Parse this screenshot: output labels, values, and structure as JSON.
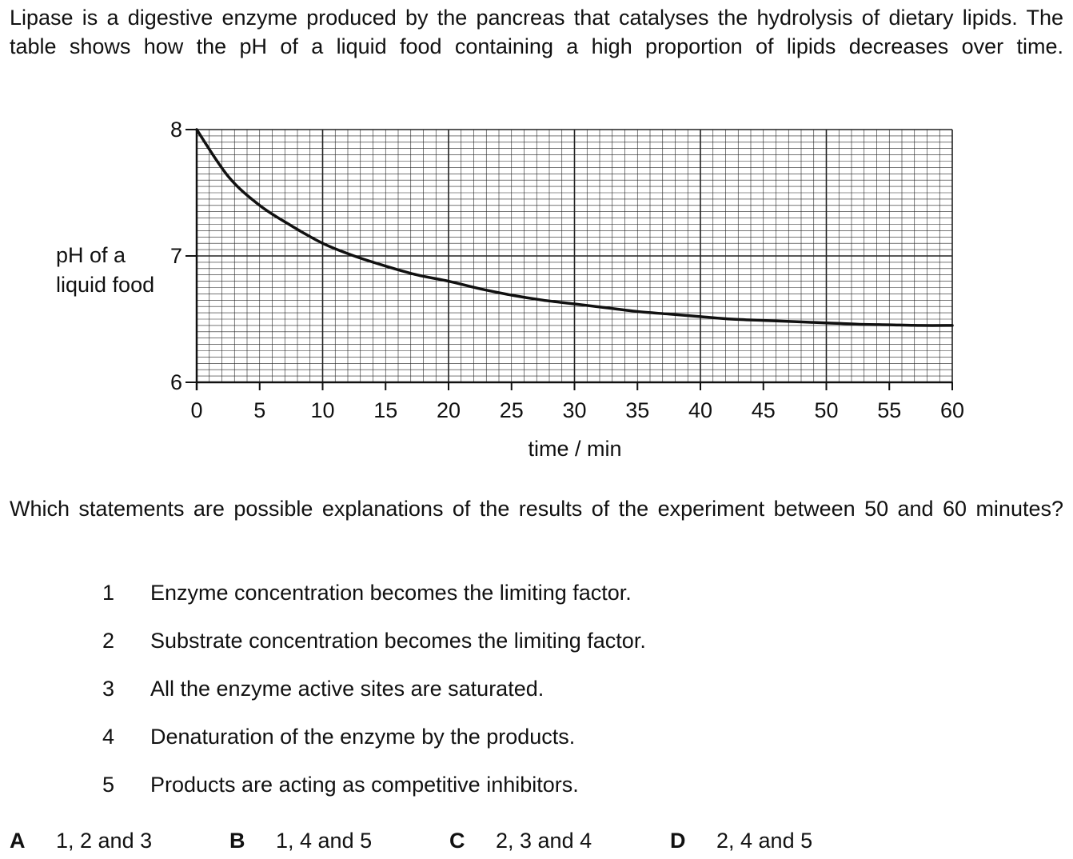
{
  "intro": "Lipase is a digestive enzyme produced by the pancreas that catalyses the hydrolysis of dietary lipids. The table shows how the pH of a liquid food containing a high proportion of lipids decreases over time.",
  "chart_data": {
    "type": "line",
    "title": "",
    "ylabel_line1": "pH of a",
    "ylabel_line2": "liquid food",
    "xlabel": "time / min",
    "xlim": [
      0,
      60
    ],
    "ylim": [
      6,
      8
    ],
    "xticks": [
      "0",
      "5",
      "10",
      "15",
      "20",
      "25",
      "30",
      "35",
      "40",
      "45",
      "50",
      "55",
      "60"
    ],
    "yticks": [
      "6",
      "7",
      "8"
    ],
    "grid": true,
    "series": [
      {
        "x": [
          0,
          2.5,
          5,
          7.5,
          10,
          12.5,
          15,
          17.5,
          20,
          22.5,
          25,
          27.5,
          30,
          32.5,
          35,
          37.5,
          40,
          42.5,
          45,
          47.5,
          50,
          52.5,
          55,
          57.5,
          60
        ],
        "y": [
          8.0,
          7.63,
          7.4,
          7.24,
          7.1,
          7.0,
          6.92,
          6.85,
          6.8,
          6.74,
          6.69,
          6.65,
          6.62,
          6.59,
          6.56,
          6.54,
          6.52,
          6.5,
          6.49,
          6.48,
          6.47,
          6.46,
          6.455,
          6.45,
          6.45
        ]
      }
    ]
  },
  "question": "Which statements are possible explanations of the results of the experiment between 50 and 60 minutes?",
  "statements": [
    {
      "num": "1",
      "text": "Enzyme concentration becomes the limiting factor."
    },
    {
      "num": "2",
      "text": "Substrate concentration becomes the limiting factor."
    },
    {
      "num": "3",
      "text": "All the enzyme active sites are saturated."
    },
    {
      "num": "4",
      "text": "Denaturation of the enzyme by the products."
    },
    {
      "num": "5",
      "text": "Products are acting as competitive inhibitors."
    }
  ],
  "options": [
    {
      "letter": "A",
      "text": "1, 2 and 3"
    },
    {
      "letter": "B",
      "text": "1, 4 and 5"
    },
    {
      "letter": "C",
      "text": "2, 3 and 4"
    },
    {
      "letter": "D",
      "text": "2, 4 and 5"
    }
  ],
  "colors": {
    "ink": "#111111",
    "grid": "#222222"
  }
}
